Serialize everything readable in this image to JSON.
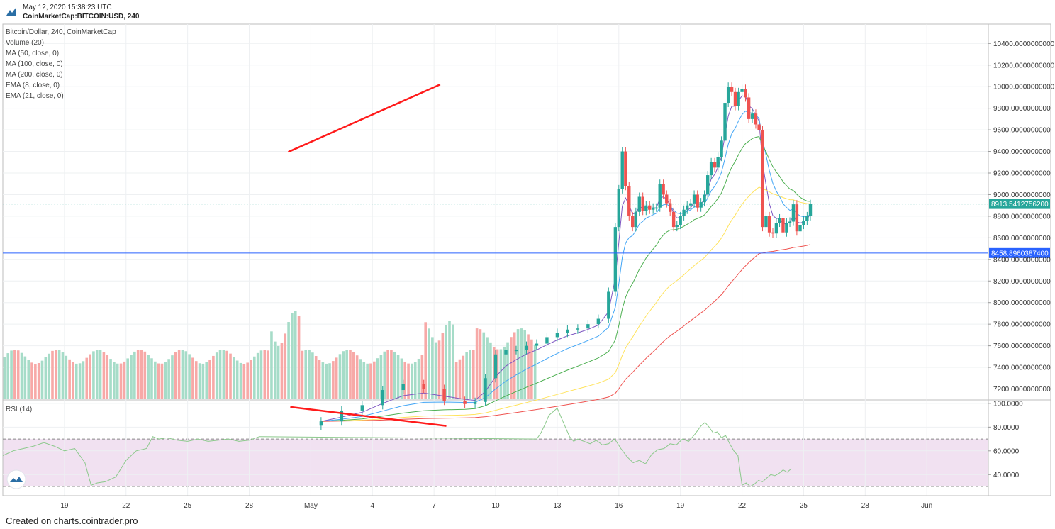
{
  "header": {
    "date": "May 12, 2020 15:38:23 UTC",
    "symbol": "CoinMarketCap:BITCOIN:USD, 240"
  },
  "footer": {
    "text": "Created on charts.cointrader.pro"
  },
  "colors": {
    "up": "#26a69a",
    "down": "#ef5350",
    "vol_up": "#a6dcc8",
    "vol_down": "#f7a9a7",
    "ema8": "#7e57c2",
    "ema21": "#42a5f5",
    "ma50": "#4caf50",
    "ma100": "#ffe35c",
    "ma200": "#ef5350",
    "trend": "#ff1a1a",
    "support": "#2962ff",
    "rsi": "#8cc98c",
    "rsi_band": "#f1e1f1"
  },
  "chart_data": [
    {
      "type": "candlestick",
      "title": "Bitcoin/Dollar, 240, CoinMarketCap",
      "legend": [
        "Volume (20)",
        "MA (50, close, 0)",
        "MA (100, close, 0)",
        "MA (200, close, 0)",
        "EMA (8, close, 0)",
        "EMA (21, close, 0)"
      ],
      "y_ticks": [
        "10400.0000000000",
        "10200.0000000000",
        "10000.0000000000",
        "9800.0000000000",
        "9600.0000000000",
        "9400.0000000000",
        "9200.0000000000",
        "9000.0000000000",
        "8800.0000000000",
        "8600.0000000000",
        "8400.0000000000",
        "8200.0000000000",
        "8000.0000000000",
        "7800.0000000000",
        "7600.0000000000",
        "7400.0000000000",
        "7200.0000000000"
      ],
      "y_tick_values": [
        10400,
        10200,
        10000,
        9800,
        9600,
        9400,
        9200,
        9000,
        8800,
        8600,
        8400,
        8200,
        8000,
        7800,
        7600,
        7400,
        7200
      ],
      "ylim": [
        7108,
        10500
      ],
      "x_ticks": [
        "19",
        "22",
        "25",
        "28",
        "May",
        "4",
        "7",
        "10",
        "13",
        "16",
        "19",
        "22",
        "25",
        "28",
        "Jun"
      ],
      "x_tick_days": [
        3,
        6,
        9,
        12,
        15,
        18,
        21,
        24,
        27,
        30,
        33,
        36,
        39,
        42,
        45
      ],
      "x_unit": "days after Apr 16, 2020",
      "price_line": {
        "value": 8913.54,
        "label": "8913.5412756200"
      },
      "support_line": {
        "value": 8458.9,
        "label": "8458.8960387400"
      },
      "trendline": {
        "start": {
          "day": 13.9,
          "price": 9395
        },
        "end": {
          "day": 21.3,
          "price": 10020
        }
      },
      "candles": [
        {
          "day": 15.5,
          "price": 6900
        },
        {
          "day": 16.5,
          "price": 7000
        },
        {
          "day": 17.5,
          "price": 7050
        },
        {
          "day": 18.5,
          "price": 7190
        },
        {
          "day": 19.5,
          "price": 7245
        },
        {
          "day": 20.5,
          "price": 7200
        },
        {
          "day": 21.5,
          "price": 7090
        },
        {
          "day": 22.5,
          "price": 7060
        },
        {
          "day": 23.0,
          "price": 7080
        },
        {
          "day": 23.5,
          "price": 7300
        },
        {
          "day": 24.0,
          "price": 7520
        },
        {
          "day": 24.5,
          "price": 7560
        },
        {
          "day": 25.0,
          "price": 7560
        },
        {
          "day": 25.5,
          "price": 7600
        },
        {
          "day": 26.0,
          "price": 7620
        },
        {
          "day": 26.5,
          "price": 7680
        },
        {
          "day": 27.0,
          "price": 7720
        },
        {
          "day": 27.5,
          "price": 7750
        },
        {
          "day": 28.0,
          "price": 7760
        },
        {
          "day": 28.5,
          "price": 7800
        },
        {
          "day": 29.0,
          "price": 7850
        },
        {
          "day": 29.5,
          "price": 8100
        },
        {
          "day": 29.83,
          "price": 8700
        },
        {
          "day": 30.0,
          "price": 9050
        },
        {
          "day": 30.17,
          "price": 9400
        },
        {
          "day": 30.33,
          "price": 9080
        },
        {
          "day": 30.5,
          "price": 8800
        },
        {
          "day": 30.67,
          "price": 8700
        },
        {
          "day": 30.83,
          "price": 8840
        },
        {
          "day": 31.0,
          "price": 8980
        },
        {
          "day": 31.17,
          "price": 8850
        },
        {
          "day": 31.33,
          "price": 8900
        },
        {
          "day": 31.5,
          "price": 8860
        },
        {
          "day": 31.67,
          "price": 8880
        },
        {
          "day": 31.83,
          "price": 8880
        },
        {
          "day": 32.0,
          "price": 9100
        },
        {
          "day": 32.17,
          "price": 9000
        },
        {
          "day": 32.33,
          "price": 8920
        },
        {
          "day": 32.5,
          "price": 8840
        },
        {
          "day": 32.67,
          "price": 8700
        },
        {
          "day": 32.83,
          "price": 8720
        },
        {
          "day": 33.0,
          "price": 8800
        },
        {
          "day": 33.17,
          "price": 8860
        },
        {
          "day": 33.33,
          "price": 8900
        },
        {
          "day": 33.5,
          "price": 8920
        },
        {
          "day": 33.67,
          "price": 9000
        },
        {
          "day": 33.83,
          "price": 8880
        },
        {
          "day": 34.0,
          "price": 8930
        },
        {
          "day": 34.17,
          "price": 9000
        },
        {
          "day": 34.33,
          "price": 9180
        },
        {
          "day": 34.5,
          "price": 9300
        },
        {
          "day": 34.67,
          "price": 9250
        },
        {
          "day": 34.83,
          "price": 9350
        },
        {
          "day": 35.0,
          "price": 9500
        },
        {
          "day": 35.17,
          "price": 9850
        },
        {
          "day": 35.33,
          "price": 10000
        },
        {
          "day": 35.5,
          "price": 9950
        },
        {
          "day": 35.67,
          "price": 9820
        },
        {
          "day": 35.83,
          "price": 9950
        },
        {
          "day": 36.0,
          "price": 9980
        },
        {
          "day": 36.17,
          "price": 9900
        },
        {
          "day": 36.33,
          "price": 9700
        },
        {
          "day": 36.5,
          "price": 9750
        },
        {
          "day": 36.67,
          "price": 9650
        },
        {
          "day": 36.83,
          "price": 9600
        },
        {
          "day": 37.0,
          "price": 8700
        },
        {
          "day": 37.17,
          "price": 8800
        },
        {
          "day": 37.33,
          "price": 8650
        },
        {
          "day": 37.5,
          "price": 8640
        },
        {
          "day": 37.67,
          "price": 8740
        },
        {
          "day": 37.83,
          "price": 8780
        },
        {
          "day": 38.0,
          "price": 8650
        },
        {
          "day": 38.17,
          "price": 8740
        },
        {
          "day": 38.33,
          "price": 8750
        },
        {
          "day": 38.5,
          "price": 8910
        },
        {
          "day": 38.67,
          "price": 8660
        },
        {
          "day": 38.83,
          "price": 8720
        },
        {
          "day": 39.0,
          "price": 8760
        },
        {
          "day": 39.17,
          "price": 8800
        },
        {
          "day": 39.33,
          "price": 8913
        }
      ]
    },
    {
      "type": "line",
      "title": "RSI (14)",
      "y_ticks": [
        "100.0000",
        "80.0000",
        "60.0000",
        "40.0000"
      ],
      "y_tick_values": [
        100,
        80,
        60,
        40
      ],
      "ylim": [
        25,
        100
      ],
      "overbought": 70,
      "oversold": 30,
      "trendline": {
        "start": {
          "day": 14.0,
          "value": 97
        },
        "end": {
          "day": 21.6,
          "value": 81
        }
      },
      "points": [
        {
          "day": 13.0,
          "value": 70
        },
        {
          "day": 13.2,
          "value": 75
        },
        {
          "day": 13.4,
          "value": 82
        },
        {
          "day": 13.6,
          "value": 90
        },
        {
          "day": 13.8,
          "value": 93
        },
        {
          "day": 14.0,
          "value": 96
        },
        {
          "day": 14.2,
          "value": 88
        },
        {
          "day": 14.4,
          "value": 80
        },
        {
          "day": 14.6,
          "value": 72
        },
        {
          "day": 14.8,
          "value": 68
        },
        {
          "day": 15.0,
          "value": 70
        },
        {
          "day": 15.3,
          "value": 68
        },
        {
          "day": 15.6,
          "value": 66
        },
        {
          "day": 15.9,
          "value": 69
        },
        {
          "day": 16.2,
          "value": 65
        },
        {
          "day": 16.5,
          "value": 66
        },
        {
          "day": 16.8,
          "value": 70
        },
        {
          "day": 17.1,
          "value": 62
        },
        {
          "day": 17.4,
          "value": 55
        },
        {
          "day": 17.7,
          "value": 50
        },
        {
          "day": 18.0,
          "value": 52
        },
        {
          "day": 18.3,
          "value": 49
        },
        {
          "day": 18.6,
          "value": 57
        },
        {
          "day": 18.9,
          "value": 61
        },
        {
          "day": 19.2,
          "value": 62
        },
        {
          "day": 19.5,
          "value": 66
        },
        {
          "day": 19.8,
          "value": 65
        },
        {
          "day": 20.1,
          "value": 70
        },
        {
          "day": 20.4,
          "value": 68
        },
        {
          "day": 20.7,
          "value": 74
        },
        {
          "day": 21.0,
          "value": 81
        },
        {
          "day": 21.2,
          "value": 84
        },
        {
          "day": 21.4,
          "value": 80
        },
        {
          "day": 21.6,
          "value": 75
        },
        {
          "day": 21.8,
          "value": 76
        },
        {
          "day": 22.0,
          "value": 71
        },
        {
          "day": 22.2,
          "value": 73
        },
        {
          "day": 22.4,
          "value": 66
        },
        {
          "day": 22.6,
          "value": 60
        },
        {
          "day": 22.8,
          "value": 56
        },
        {
          "day": 23.0,
          "value": 31
        },
        {
          "day": 23.2,
          "value": 33
        },
        {
          "day": 23.4,
          "value": 30
        },
        {
          "day": 23.6,
          "value": 32
        },
        {
          "day": 23.8,
          "value": 35
        },
        {
          "day": 24.0,
          "value": 34
        },
        {
          "day": 24.2,
          "value": 37
        },
        {
          "day": 24.4,
          "value": 40
        },
        {
          "day": 24.6,
          "value": 39
        },
        {
          "day": 24.8,
          "value": 41
        },
        {
          "day": 25.0,
          "value": 44
        },
        {
          "day": 25.2,
          "value": 42
        },
        {
          "day": 25.4,
          "value": 45
        }
      ],
      "early_points": [
        {
          "day": 0,
          "value": 56
        },
        {
          "day": 0.5,
          "value": 60
        },
        {
          "day": 1,
          "value": 62
        },
        {
          "day": 1.5,
          "value": 64
        },
        {
          "day": 2,
          "value": 67
        },
        {
          "day": 2.5,
          "value": 64
        },
        {
          "day": 3,
          "value": 60
        },
        {
          "day": 3.5,
          "value": 62
        },
        {
          "day": 4,
          "value": 50
        },
        {
          "day": 4.3,
          "value": 31
        },
        {
          "day": 4.6,
          "value": 33
        },
        {
          "day": 5,
          "value": 34
        },
        {
          "day": 5.5,
          "value": 38
        },
        {
          "day": 6,
          "value": 52
        },
        {
          "day": 6.5,
          "value": 60
        },
        {
          "day": 7,
          "value": 62
        },
        {
          "day": 7.3,
          "value": 72
        },
        {
          "day": 7.6,
          "value": 70
        },
        {
          "day": 8,
          "value": 71
        },
        {
          "day": 8.5,
          "value": 69
        },
        {
          "day": 9,
          "value": 68
        },
        {
          "day": 9.5,
          "value": 70
        },
        {
          "day": 10,
          "value": 68
        },
        {
          "day": 10.5,
          "value": 69
        },
        {
          "day": 11,
          "value": 70
        },
        {
          "day": 11.5,
          "value": 68
        },
        {
          "day": 12,
          "value": 69
        },
        {
          "day": 12.5,
          "value": 72
        }
      ]
    }
  ]
}
